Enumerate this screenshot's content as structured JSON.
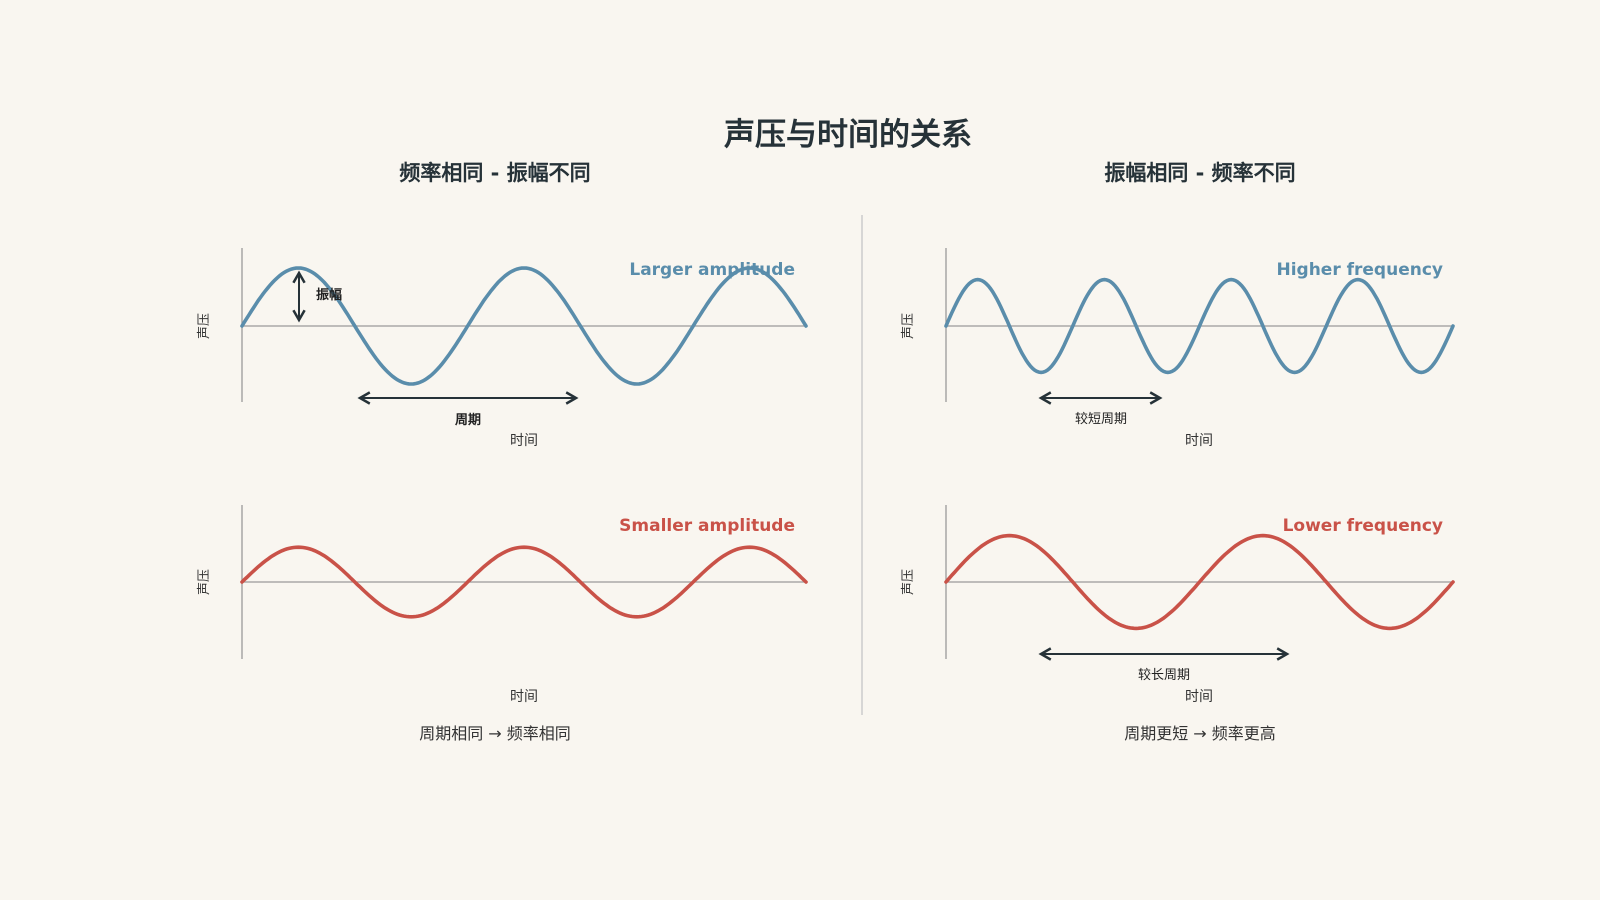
{
  "title": "声压与时间的关系",
  "colors": {
    "blue": "#5a8dab",
    "red": "#c95248",
    "background": "#f9f6f0",
    "text": "#263238"
  },
  "left": {
    "subtitle": "频率相同 - 振幅不同",
    "top": {
      "y_label": "声压",
      "x_label": "时间",
      "wave_label": "Larger amplitude",
      "amplitude_annotation": "振幅",
      "period_annotation": "周期",
      "cycles": 2.5,
      "amplitude": 1.0
    },
    "bottom": {
      "y_label": "声压",
      "x_label": "时间",
      "wave_label": "Smaller amplitude",
      "cycles": 2.5,
      "amplitude": 0.6
    },
    "caption": "周期相同 → 频率相同"
  },
  "right": {
    "subtitle": "振幅相同 - 频率不同",
    "top": {
      "y_label": "声压",
      "x_label": "时间",
      "wave_label": "Higher frequency",
      "period_annotation": "较短周期",
      "cycles": 4,
      "amplitude": 0.8
    },
    "bottom": {
      "y_label": "声压",
      "x_label": "时间",
      "wave_label": "Lower frequency",
      "period_annotation": "较长周期",
      "cycles": 2,
      "amplitude": 0.8
    },
    "caption": "周期更短 → 频率更高"
  }
}
